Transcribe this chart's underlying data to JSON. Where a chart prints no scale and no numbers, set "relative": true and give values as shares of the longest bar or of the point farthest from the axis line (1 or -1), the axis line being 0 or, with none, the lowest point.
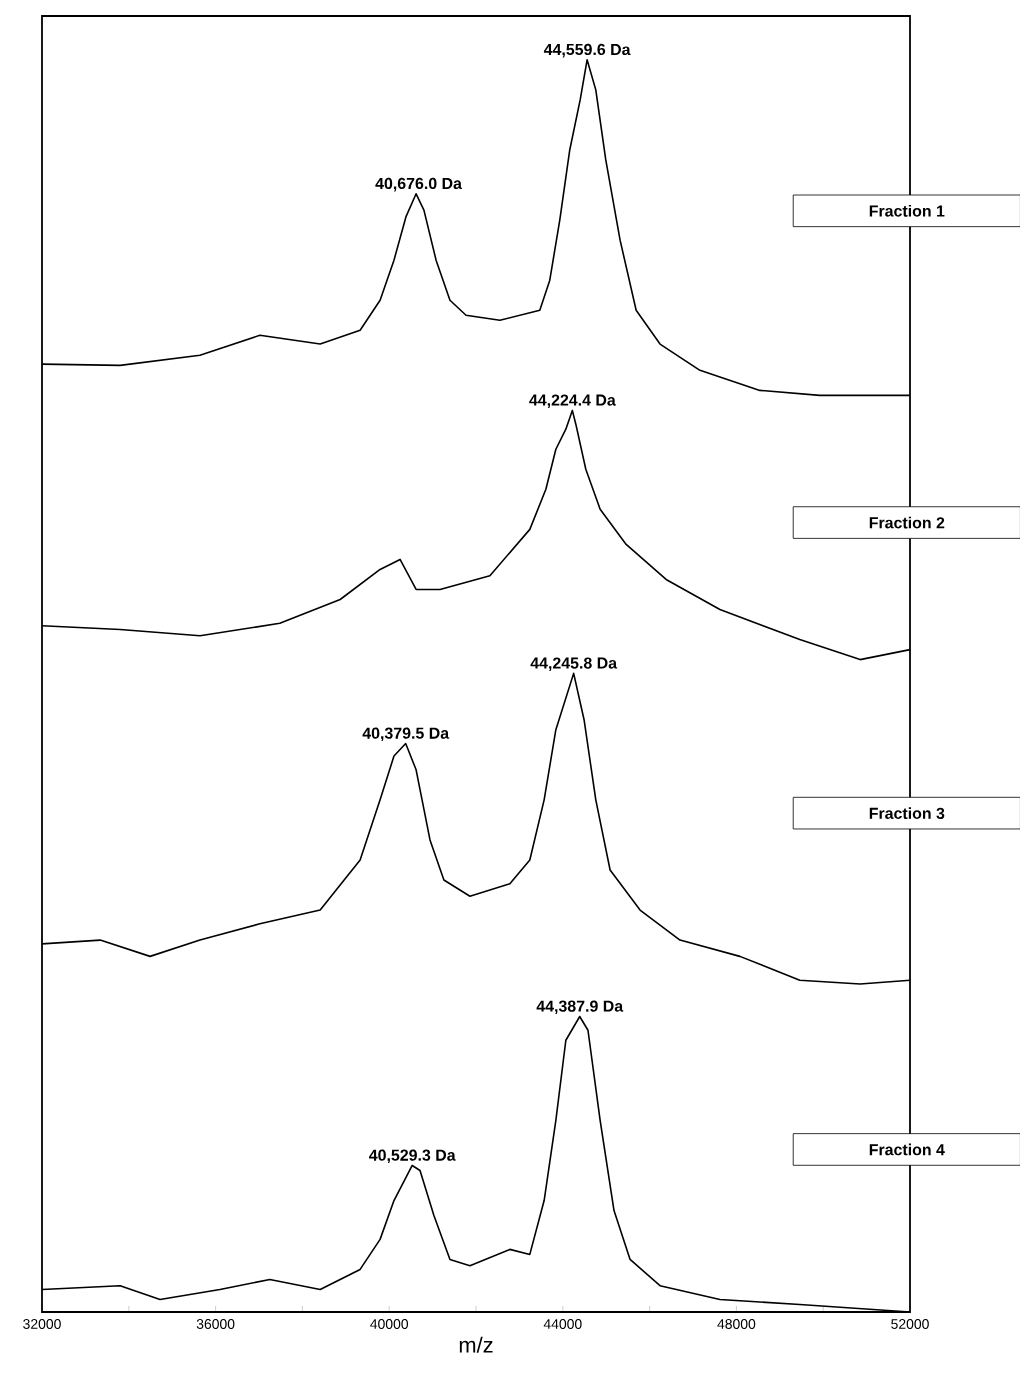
{
  "chart_data": {
    "type": "line",
    "relative": true,
    "xlabel": "m/z",
    "xlim": [
      32000,
      52000
    ],
    "xticks": [
      32000,
      {
        "value": 34000,
        "label": null
      },
      36000,
      {
        "value": 38000,
        "label": null
      },
      40000,
      {
        "value": 42000,
        "label": null
      },
      44000,
      {
        "value": 46000,
        "label": null
      },
      48000,
      {
        "value": 50000,
        "label": null
      },
      52000
    ],
    "marker": "none",
    "line_style": "solid",
    "series": [
      {
        "name": "Fraction 1",
        "color": "#000000",
        "x": [
          32000,
          33800,
          35640,
          37020,
          38410,
          39330,
          39790,
          40110,
          40390,
          40620,
          40800,
          41080,
          41400,
          41770,
          42550,
          43470,
          43700,
          43930,
          44160,
          44400,
          44560,
          44760,
          44990,
          45320,
          45690,
          46240,
          47160,
          48540,
          49920,
          52000
        ],
        "values": [
          0.757,
          0.756,
          0.764,
          0.78,
          0.773,
          0.784,
          0.808,
          0.84,
          0.875,
          0.893,
          0.88,
          0.84,
          0.808,
          0.796,
          0.792,
          0.8,
          0.824,
          0.872,
          0.928,
          0.968,
          1.0,
          0.976,
          0.92,
          0.856,
          0.8,
          0.773,
          0.752,
          0.736,
          0.732,
          0.732
        ]
      },
      {
        "name": "Fraction 2",
        "color": "#000000",
        "x": [
          32000,
          33800,
          35640,
          37480,
          38870,
          39790,
          40250,
          40620,
          41170,
          42320,
          43240,
          43610,
          43840,
          44070,
          44220,
          44300,
          44530,
          44860,
          45460,
          46380,
          47620,
          49460,
          50850,
          52000
        ],
        "values": [
          0.548,
          0.545,
          0.54,
          0.55,
          0.569,
          0.593,
          0.601,
          0.577,
          0.577,
          0.588,
          0.625,
          0.657,
          0.689,
          0.705,
          0.72,
          0.709,
          0.673,
          0.641,
          0.613,
          0.585,
          0.561,
          0.537,
          0.521,
          0.529
        ]
      },
      {
        "name": "Fraction 3",
        "color": "#000000",
        "x": [
          32000,
          33340,
          34490,
          35640,
          37020,
          38410,
          39330,
          39790,
          40110,
          40380,
          40620,
          40940,
          41260,
          41860,
          42780,
          43240,
          43570,
          43840,
          44250,
          44490,
          44760,
          45090,
          45780,
          46700,
          48080,
          49460,
          50850,
          52000
        ],
        "values": [
          0.294,
          0.297,
          0.284,
          0.297,
          0.31,
          0.321,
          0.361,
          0.409,
          0.444,
          0.454,
          0.433,
          0.377,
          0.345,
          0.332,
          0.342,
          0.361,
          0.409,
          0.465,
          0.51,
          0.473,
          0.409,
          0.353,
          0.321,
          0.297,
          0.284,
          0.265,
          0.262,
          0.265
        ]
      },
      {
        "name": "Fraction 4",
        "color": "#000000",
        "x": [
          32000,
          33800,
          34720,
          36100,
          37250,
          38410,
          39330,
          39790,
          40110,
          40530,
          40710,
          41030,
          41400,
          41860,
          42780,
          43240,
          43570,
          43840,
          44070,
          44390,
          44580,
          44860,
          45180,
          45550,
          46240,
          47620,
          49460,
          52000
        ],
        "values": [
          0.018,
          0.021,
          0.01,
          0.018,
          0.026,
          0.018,
          0.034,
          0.058,
          0.089,
          0.117,
          0.113,
          0.077,
          0.042,
          0.037,
          0.05,
          0.046,
          0.089,
          0.153,
          0.217,
          0.236,
          0.225,
          0.153,
          0.081,
          0.042,
          0.021,
          0.01,
          0.006,
          0.0
        ]
      }
    ],
    "annotations": [
      {
        "text": "44,559.6 Da",
        "x": 44560,
        "y": 1.0
      },
      {
        "text": "40,676.0 Da",
        "x": 40676,
        "y": 0.893
      },
      {
        "text": "44,224.4 Da",
        "x": 44220,
        "y": 0.72
      },
      {
        "text": "40,379.5 Da",
        "x": 40380,
        "y": 0.454
      },
      {
        "text": "44,245.8 Da",
        "x": 44250,
        "y": 0.51
      },
      {
        "text": "40,529.3 Da",
        "x": 40530,
        "y": 0.117
      },
      {
        "text": "44,387.9 Da",
        "x": 44390,
        "y": 0.236
      }
    ]
  }
}
